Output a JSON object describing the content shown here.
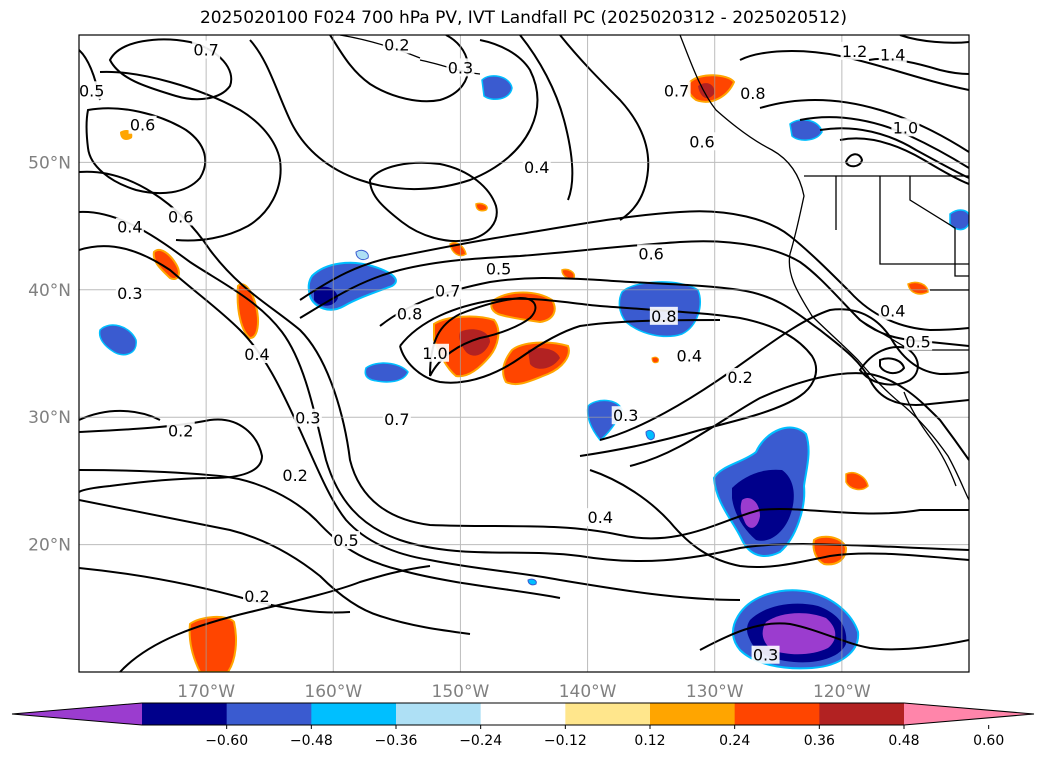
{
  "title": "2025020100 F024 700 hPa PV, IVT Landfall PC (2025020312 - 2025020512)",
  "map": {
    "lon_range": [
      -180,
      -110
    ],
    "lat_range": [
      10,
      60
    ],
    "lat_ticks": [
      {
        "lat": 50,
        "label": "50°N"
      },
      {
        "lat": 40,
        "label": "40°N"
      },
      {
        "lat": 30,
        "label": "30°N"
      },
      {
        "lat": 20,
        "label": "20°N"
      }
    ],
    "lon_ticks": [
      {
        "lon": -170,
        "label": "170°W"
      },
      {
        "lon": -160,
        "label": "160°W"
      },
      {
        "lon": -150,
        "label": "150°W"
      },
      {
        "lon": -140,
        "label": "140°W"
      },
      {
        "lon": -130,
        "label": "130°W"
      },
      {
        "lon": -120,
        "label": "120°W"
      }
    ],
    "gridlines": true
  },
  "contour_labels": [
    {
      "text": "0.7",
      "lon": -170,
      "lat": 58.7
    },
    {
      "text": "0.2",
      "lon": -155,
      "lat": 59.1
    },
    {
      "text": "0.3",
      "lon": -150,
      "lat": 57.3
    },
    {
      "text": "0.5",
      "lon": -179,
      "lat": 55.5
    },
    {
      "text": "0.6",
      "lon": -175,
      "lat": 52.8
    },
    {
      "text": "0.7",
      "lon": -133,
      "lat": 55.5
    },
    {
      "text": "0.6",
      "lon": -131,
      "lat": 51.5
    },
    {
      "text": "0.4",
      "lon": -144,
      "lat": 49.5
    },
    {
      "text": "0.8",
      "lon": -127,
      "lat": 55.3
    },
    {
      "text": "1.2",
      "lon": -119,
      "lat": 58.6
    },
    {
      "text": "1.4",
      "lon": -116,
      "lat": 58.3
    },
    {
      "text": "1.0",
      "lon": -115,
      "lat": 52.6
    },
    {
      "text": "0.6",
      "lon": -172,
      "lat": 45.6
    },
    {
      "text": "0.4",
      "lon": -176,
      "lat": 44.8
    },
    {
      "text": "0.3",
      "lon": -176,
      "lat": 39.6
    },
    {
      "text": "0.5",
      "lon": -147,
      "lat": 41.5
    },
    {
      "text": "0.7",
      "lon": -151,
      "lat": 39.8
    },
    {
      "text": "0.8",
      "lon": -154,
      "lat": 38.0
    },
    {
      "text": "0.6",
      "lon": -135,
      "lat": 42.7
    },
    {
      "text": "0.8",
      "lon": -134,
      "lat": 37.8
    },
    {
      "text": "0.4",
      "lon": -116,
      "lat": 38.2
    },
    {
      "text": "0.5",
      "lon": -114,
      "lat": 35.8
    },
    {
      "text": "0.4",
      "lon": -166,
      "lat": 34.8
    },
    {
      "text": "1.0",
      "lon": -152,
      "lat": 34.9
    },
    {
      "text": "0.4",
      "lon": -132,
      "lat": 34.7
    },
    {
      "text": "0.3",
      "lon": -162,
      "lat": 29.8
    },
    {
      "text": "0.7",
      "lon": -155,
      "lat": 29.7
    },
    {
      "text": "0.3",
      "lon": -137,
      "lat": 30.0
    },
    {
      "text": "0.2",
      "lon": -128,
      "lat": 33.0
    },
    {
      "text": "0.2",
      "lon": -172,
      "lat": 28.8
    },
    {
      "text": "0.2",
      "lon": -163,
      "lat": 25.3
    },
    {
      "text": "0.4",
      "lon": -139,
      "lat": 22.0
    },
    {
      "text": "0.5",
      "lon": -159,
      "lat": 20.2
    },
    {
      "text": "0.2",
      "lon": -166,
      "lat": 15.8
    },
    {
      "text": "0.3",
      "lon": -126,
      "lat": 11.2
    }
  ],
  "colorbar": {
    "colors": [
      "#9b3ccf",
      "#00008b",
      "#3a5bd0",
      "#00bfff",
      "#aee0f5",
      "#ffffff",
      "#ffe68c",
      "#ffa500",
      "#ff4500",
      "#b22222",
      "#ff85aa"
    ],
    "tick_labels": [
      "−0.60",
      "−0.48",
      "−0.36",
      "−0.24",
      "−0.12",
      "0.12",
      "0.24",
      "0.36",
      "0.48",
      "0.60"
    ]
  }
}
